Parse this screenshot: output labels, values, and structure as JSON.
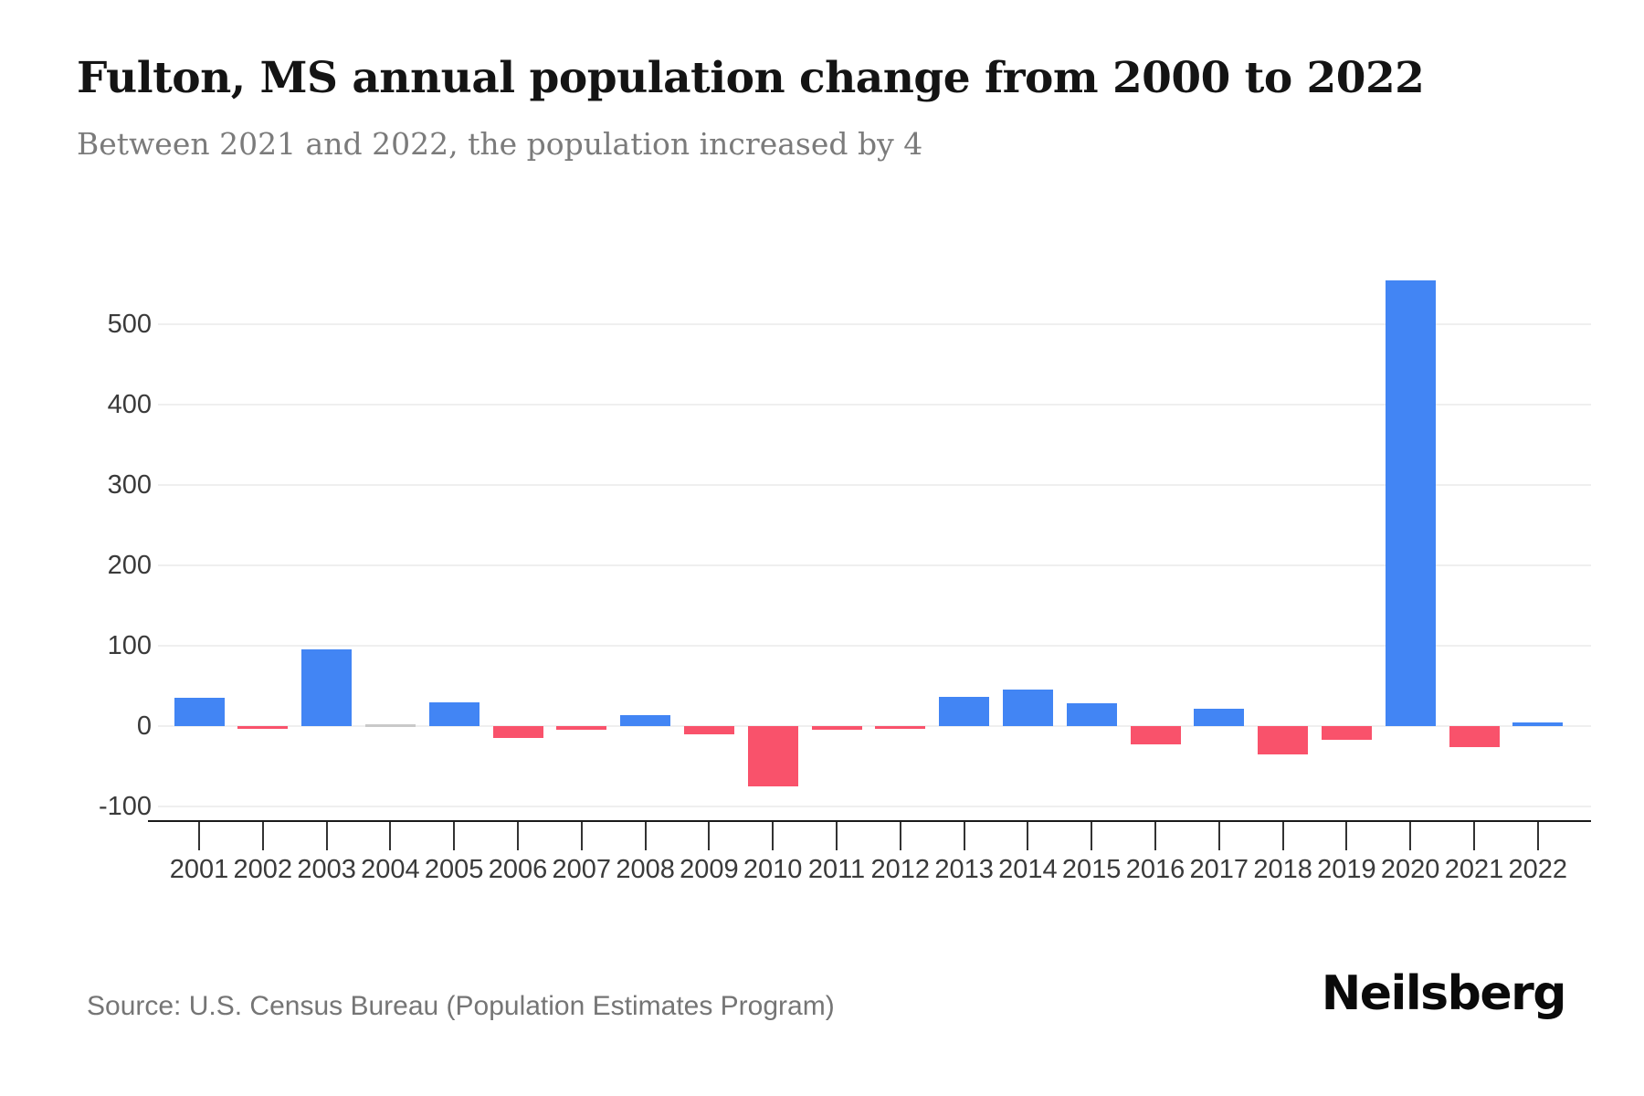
{
  "header": {
    "title": "Fulton, MS annual population change from 2000 to 2022",
    "subtitle": "Between 2021 and 2022, the population increased by 4"
  },
  "footer": {
    "source": "Source: U.S. Census Bureau (Population Estimates Program)",
    "brand": "Neilsberg"
  },
  "chart_data": {
    "type": "bar",
    "title": "Fulton, MS annual population change from 2000 to 2022",
    "categories": [
      "2001",
      "2002",
      "2003",
      "2004",
      "2005",
      "2006",
      "2007",
      "2008",
      "2009",
      "2010",
      "2011",
      "2012",
      "2013",
      "2014",
      "2015",
      "2016",
      "2017",
      "2018",
      "2019",
      "2020",
      "2021",
      "2022"
    ],
    "values": [
      35,
      -3,
      95,
      0,
      29,
      -15,
      -4,
      14,
      -10,
      -75,
      -5,
      -3,
      36,
      46,
      28,
      -23,
      22,
      -35,
      -17,
      555,
      -26,
      4
    ],
    "xlabel": "",
    "ylabel": "",
    "ylim": [
      -100,
      560
    ],
    "yticks": [
      -100,
      0,
      100,
      200,
      300,
      400,
      500
    ],
    "grid": true,
    "legend": "none",
    "colors": {
      "positive": "#4285f4",
      "negative": "#f9526b",
      "zero": "#c9c9c9"
    }
  }
}
